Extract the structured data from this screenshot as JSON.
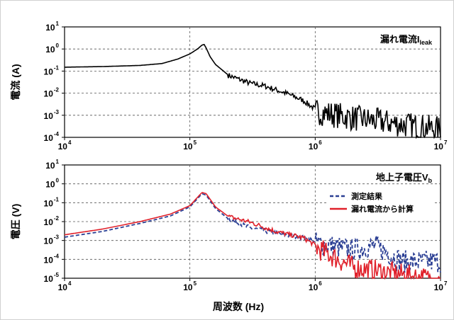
{
  "chart_data": [
    {
      "type": "line",
      "scale": {
        "x": "log",
        "y": "log"
      },
      "xlim": [
        10000,
        10000000
      ],
      "ylim": [
        0.0001,
        10
      ],
      "grid": true,
      "xlabel": "",
      "ylabel": "電流 (A)",
      "annotation": {
        "text": "漏れ電流",
        "symbol": "I",
        "subscript": "leak"
      },
      "x_ticks": [
        {
          "base": "10",
          "exp": "4"
        },
        {
          "base": "10",
          "exp": "5"
        },
        {
          "base": "10",
          "exp": "6"
        },
        {
          "base": "10",
          "exp": "7"
        }
      ],
      "y_ticks": [
        {
          "base": "10",
          "exp": "1"
        },
        {
          "base": "10",
          "exp": "0"
        },
        {
          "base": "10",
          "exp": "-1"
        },
        {
          "base": "10",
          "exp": "-2"
        },
        {
          "base": "10",
          "exp": "-3"
        },
        {
          "base": "10",
          "exp": "-4"
        }
      ],
      "series": [
        {
          "color": "#000000",
          "x": [
            10000,
            20000,
            40000,
            60000,
            80000,
            100000,
            115000,
            125000,
            130000,
            135000,
            145000,
            160000,
            200000,
            300000,
            400000,
            600000,
            800000,
            1000000,
            2000000,
            5000000,
            10000000
          ],
          "y": [
            0.15,
            0.16,
            0.18,
            0.22,
            0.35,
            0.6,
            1.0,
            1.5,
            1.6,
            1.1,
            0.45,
            0.2,
            0.07,
            0.03,
            0.022,
            0.01,
            0.005,
            0.002,
            0.001,
            0.0005,
            0.0003
          ]
        }
      ]
    },
    {
      "type": "line",
      "scale": {
        "x": "log",
        "y": "log"
      },
      "xlim": [
        10000,
        10000000
      ],
      "ylim": [
        1e-05,
        10
      ],
      "grid": true,
      "xlabel": "周波数 (Hz)",
      "ylabel": "電圧 (V)",
      "annotation": {
        "text": "地上子電圧",
        "symbol": "V",
        "subscript": "b"
      },
      "legend_position": "top-right",
      "x_ticks": [
        {
          "base": "10",
          "exp": "4"
        },
        {
          "base": "10",
          "exp": "5"
        },
        {
          "base": "10",
          "exp": "6"
        },
        {
          "base": "10",
          "exp": "7"
        }
      ],
      "y_ticks": [
        {
          "base": "10",
          "exp": "1"
        },
        {
          "base": "10",
          "exp": "0"
        },
        {
          "base": "10",
          "exp": "-1"
        },
        {
          "base": "10",
          "exp": "-2"
        },
        {
          "base": "10",
          "exp": "-3"
        },
        {
          "base": "10",
          "exp": "-4"
        },
        {
          "base": "10",
          "exp": "-5"
        }
      ],
      "series": [
        {
          "name": "測定結果",
          "color": "#2b3f94",
          "dash": true,
          "x": [
            10000,
            20000,
            40000,
            70000,
            100000,
            125000,
            135000,
            160000,
            200000,
            300000,
            500000,
            800000,
            1000000,
            2000000,
            3000000,
            5000000,
            10000000
          ],
          "y": [
            0.0015,
            0.003,
            0.008,
            0.02,
            0.06,
            0.3,
            0.25,
            0.05,
            0.015,
            0.005,
            0.0025,
            0.0015,
            0.001,
            0.0004,
            0.0007,
            0.0001,
            0.0001
          ]
        },
        {
          "name": "漏れ電流から計算",
          "color": "#e0202a",
          "dash": false,
          "x": [
            10000,
            20000,
            40000,
            70000,
            100000,
            125000,
            135000,
            160000,
            200000,
            300000,
            500000,
            800000,
            1000000,
            2000000,
            5000000,
            10000000
          ],
          "y": [
            0.002,
            0.004,
            0.01,
            0.025,
            0.07,
            0.35,
            0.3,
            0.06,
            0.02,
            0.01,
            0.003,
            0.0015,
            0.0006,
            5e-05,
            2e-05,
            1e-05
          ]
        }
      ]
    }
  ]
}
